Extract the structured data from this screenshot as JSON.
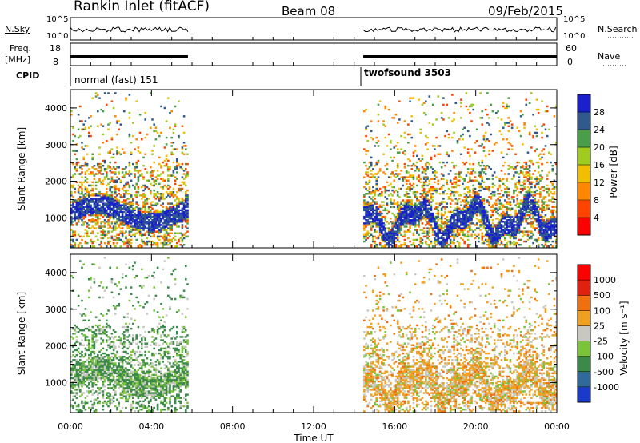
{
  "header": {
    "site": "Rankin Inlet (fitACF)",
    "beam": "Beam 08",
    "date": "09/Feb/2015"
  },
  "info_panels": {
    "nsky_label": "N.Sky",
    "nsky_ticks": [
      "10^5",
      "10^0"
    ],
    "nsearch_label": "N.Search",
    "nsearch_ticks": [
      "10^5",
      "10^0"
    ],
    "freq_label_top": "Freq.",
    "freq_label_bottom": "[MHz]",
    "freq_ticks": [
      "18",
      "8"
    ],
    "nave_label": "Nave",
    "nave_ticks": [
      "60",
      "0"
    ],
    "cpid_label": "CPID",
    "cpid_segments": [
      {
        "label": "normal (fast) 151"
      },
      {
        "label": "twofsound 3503"
      }
    ]
  },
  "chart_data": [
    {
      "type": "heatmap",
      "title": "Power",
      "ylabel": "Slant Range [km]",
      "xlabel": "",
      "x_range_hours": [
        0,
        24
      ],
      "ylim": [
        180,
        4500
      ],
      "ytick_labels": [
        "1000",
        "2000",
        "3000",
        "4000"
      ],
      "colorbar": {
        "label": "Power [dB]",
        "ticks": [
          "28",
          "24",
          "20",
          "16",
          "12",
          "8",
          "4"
        ],
        "colors": [
          "#ff0000",
          "#ff4400",
          "#ff8800",
          "#f0c000",
          "#a0cc20",
          "#4a9e4a",
          "#305a8c",
          "#1a20cc"
        ]
      },
      "data_intervals_hours": [
        [
          0,
          5.8
        ],
        [
          14.45,
          24
        ]
      ]
    },
    {
      "type": "heatmap",
      "title": "Velocity",
      "ylabel": "Slant Range [km]",
      "xlabel": "Time UT",
      "x_range_hours": [
        0,
        24
      ],
      "ylim": [
        180,
        4500
      ],
      "ytick_labels": [
        "1000",
        "2000",
        "3000",
        "4000"
      ],
      "xtick_labels": [
        "00:00",
        "04:00",
        "08:00",
        "12:00",
        "16:00",
        "20:00",
        "00:00"
      ],
      "colorbar": {
        "label": "Velocity [m s⁻¹]",
        "ticks": [
          "1000",
          "500",
          "100",
          "25",
          "-25",
          "-100",
          "-500",
          "-1000"
        ],
        "colors": [
          "#1a3acc",
          "#2f6a9a",
          "#3c8a4a",
          "#7ac43a",
          "#c8c8c0",
          "#f0a020",
          "#f07010",
          "#e02010",
          "#ff0000"
        ]
      },
      "data_intervals_hours": [
        [
          0,
          5.8
        ],
        [
          14.45,
          24
        ]
      ]
    }
  ]
}
